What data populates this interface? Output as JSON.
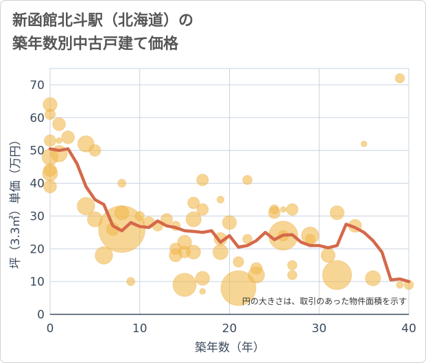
{
  "title": "新函館北斗駅（北海道）の\n築年数別中古戸建て価格",
  "chart_data": {
    "type": "scatter",
    "title": "新函館北斗駅（北海道）の 築年数別中古戸建て価格",
    "xlabel": "築年数（年）",
    "ylabel": "坪（3.3㎡）単価（万円）",
    "xlim": [
      0,
      40
    ],
    "ylim": [
      0,
      75
    ],
    "xticks": [
      0,
      10,
      20,
      30,
      40
    ],
    "yticks": [
      0,
      10,
      20,
      30,
      40,
      50,
      60,
      70
    ],
    "grid": true,
    "annotation": "円の大きさは、取引のあった物件面積を示す",
    "colors": {
      "bubble": "#f2b94f",
      "line": "#d4694a",
      "axis": "#3a4a5c",
      "grid": "#c9d3e0"
    },
    "series": [
      {
        "type": "scatter",
        "points": [
          {
            "x": 0,
            "y": 64,
            "s": 1.2
          },
          {
            "x": 0,
            "y": 61,
            "s": 0.9
          },
          {
            "x": 0,
            "y": 53,
            "s": 1.0
          },
          {
            "x": 0,
            "y": 48,
            "s": 1.4
          },
          {
            "x": 0,
            "y": 44,
            "s": 1.1
          },
          {
            "x": 0,
            "y": 43,
            "s": 1.3
          },
          {
            "x": 0,
            "y": 39,
            "s": 1.1
          },
          {
            "x": 1,
            "y": 58,
            "s": 1.1
          },
          {
            "x": 1,
            "y": 49,
            "s": 1.4
          },
          {
            "x": 1,
            "y": 53,
            "s": 0.5
          },
          {
            "x": 2,
            "y": 54,
            "s": 1.1
          },
          {
            "x": 4,
            "y": 52,
            "s": 1.4
          },
          {
            "x": 5,
            "y": 50,
            "s": 1.0
          },
          {
            "x": 4,
            "y": 33,
            "s": 1.5
          },
          {
            "x": 5,
            "y": 29,
            "s": 1.3
          },
          {
            "x": 6,
            "y": 18,
            "s": 1.5
          },
          {
            "x": 7,
            "y": 26,
            "s": 1.1
          },
          {
            "x": 8,
            "y": 26,
            "s": 4.0
          },
          {
            "x": 8,
            "y": 31,
            "s": 1.2
          },
          {
            "x": 8,
            "y": 40,
            "s": 0.7
          },
          {
            "x": 9,
            "y": 10,
            "s": 0.7
          },
          {
            "x": 10,
            "y": 30,
            "s": 0.8
          },
          {
            "x": 11,
            "y": 28,
            "s": 1.0
          },
          {
            "x": 12,
            "y": 27,
            "s": 0.9
          },
          {
            "x": 13,
            "y": 29,
            "s": 1.0
          },
          {
            "x": 14,
            "y": 27,
            "s": 0.8
          },
          {
            "x": 14,
            "y": 20,
            "s": 1.0
          },
          {
            "x": 14,
            "y": 18,
            "s": 1.1
          },
          {
            "x": 15,
            "y": 22,
            "s": 1.2
          },
          {
            "x": 15,
            "y": 19,
            "s": 1.0
          },
          {
            "x": 15,
            "y": 9,
            "s": 2.0
          },
          {
            "x": 16,
            "y": 34,
            "s": 1.0
          },
          {
            "x": 16,
            "y": 29,
            "s": 1.3
          },
          {
            "x": 16,
            "y": 19,
            "s": 1.2
          },
          {
            "x": 17,
            "y": 41,
            "s": 1.0
          },
          {
            "x": 17,
            "y": 32,
            "s": 1.0
          },
          {
            "x": 17,
            "y": 11,
            "s": 1.2
          },
          {
            "x": 17,
            "y": 7,
            "s": 0.5
          },
          {
            "x": 19,
            "y": 35,
            "s": 0.6
          },
          {
            "x": 19,
            "y": 23,
            "s": 1.1
          },
          {
            "x": 19,
            "y": 19,
            "s": 1.3
          },
          {
            "x": 20,
            "y": 28,
            "s": 1.2
          },
          {
            "x": 21,
            "y": 16,
            "s": 0.9
          },
          {
            "x": 21,
            "y": 8,
            "s": 3.0
          },
          {
            "x": 22,
            "y": 41,
            "s": 0.8
          },
          {
            "x": 22,
            "y": 23,
            "s": 0.8
          },
          {
            "x": 23,
            "y": 14,
            "s": 1.0
          },
          {
            "x": 23,
            "y": 12,
            "s": 1.4
          },
          {
            "x": 25,
            "y": 32,
            "s": 0.8
          },
          {
            "x": 25,
            "y": 31,
            "s": 1.0
          },
          {
            "x": 26,
            "y": 32,
            "s": 0.5
          },
          {
            "x": 26,
            "y": 24,
            "s": 2.5
          },
          {
            "x": 26,
            "y": 24,
            "s": 0.9
          },
          {
            "x": 27,
            "y": 32,
            "s": 1.0
          },
          {
            "x": 27,
            "y": 15,
            "s": 0.8
          },
          {
            "x": 27,
            "y": 12,
            "s": 0.8
          },
          {
            "x": 29,
            "y": 24,
            "s": 1.5
          },
          {
            "x": 29,
            "y": 23,
            "s": 0.8
          },
          {
            "x": 31,
            "y": 18,
            "s": 1.2
          },
          {
            "x": 32,
            "y": 31,
            "s": 1.2
          },
          {
            "x": 32,
            "y": 12,
            "s": 2.5
          },
          {
            "x": 34,
            "y": 27,
            "s": 1.1
          },
          {
            "x": 35,
            "y": 52,
            "s": 0.5
          },
          {
            "x": 36,
            "y": 11,
            "s": 1.3
          },
          {
            "x": 39,
            "y": 72,
            "s": 0.8
          },
          {
            "x": 39,
            "y": 9,
            "s": 0.6
          },
          {
            "x": 40,
            "y": 9,
            "s": 0.8
          }
        ]
      },
      {
        "type": "line",
        "x": [
          0,
          1,
          2,
          3,
          4,
          5,
          6,
          7,
          8,
          9,
          10,
          11,
          12,
          13,
          14,
          15,
          16,
          17,
          18,
          19,
          20,
          21,
          22,
          23,
          24,
          25,
          26,
          27,
          28,
          29,
          30,
          31,
          32,
          33,
          34,
          35,
          36,
          37,
          38,
          39,
          40
        ],
        "y": [
          50.5,
          50,
          50.5,
          46,
          39,
          35,
          33.5,
          27,
          25.5,
          28,
          26.8,
          26.5,
          28.5,
          27,
          26.5,
          25.5,
          25.3,
          25,
          25.5,
          22,
          24,
          20.5,
          21,
          22.5,
          25,
          22.8,
          24.2,
          24.3,
          22,
          21,
          21,
          20.3,
          21,
          27.5,
          26.5,
          25,
          22.5,
          19,
          10.5,
          10.8,
          10
        ]
      }
    ]
  }
}
